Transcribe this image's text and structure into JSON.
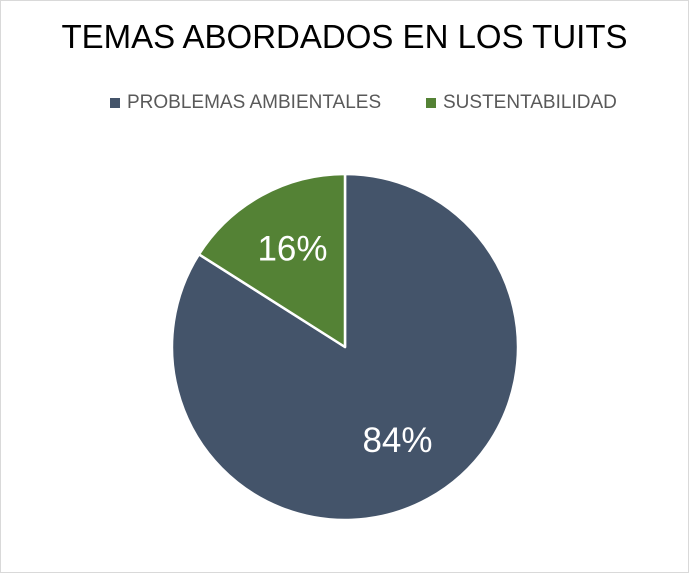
{
  "chart_data": {
    "type": "pie",
    "title": "TEMAS ABORDADOS EN LOS TUITS",
    "categories": [
      "PROBLEMAS AMBIENTALES",
      "SUSTENTABILIDAD"
    ],
    "values": [
      84,
      16
    ],
    "labels": [
      "84%",
      "16%"
    ],
    "colors": [
      "#44546a",
      "#548235"
    ],
    "label_color": "#ffffff",
    "legend_position": "top"
  }
}
